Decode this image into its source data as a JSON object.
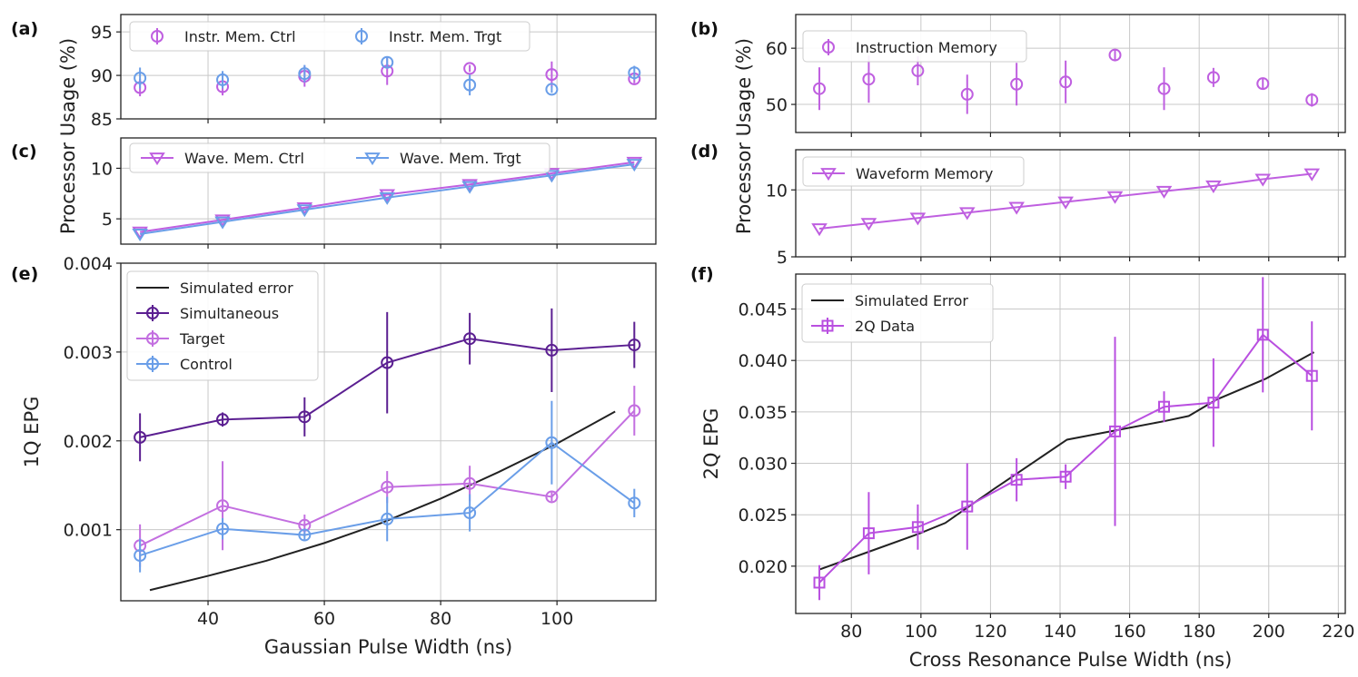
{
  "figure_ylabels": {
    "processor_usage": "Processor Usage (%)"
  },
  "chart_data": [
    {
      "id": "a",
      "panel_label": "(a)",
      "type": "scatter",
      "ylim": [
        85,
        97
      ],
      "xlim": [
        25,
        117
      ],
      "y_ticks": [
        85,
        90,
        95
      ],
      "y_tick_labels": [
        "85",
        "90",
        "95"
      ],
      "x_ticks": [
        40,
        60,
        80,
        100
      ],
      "x_tick_labels": [
        "",
        "",
        "",
        ""
      ],
      "legend": {
        "position": "top",
        "ncol": 2
      },
      "series": [
        {
          "name": "Instr. Mem. Ctrl",
          "color": "#bf5fe0",
          "marker": "circle",
          "line": false,
          "x": [
            28.3,
            42.5,
            56.6,
            70.8,
            85,
            99.1,
            113.3
          ],
          "y": [
            88.6,
            88.7,
            89.9,
            90.5,
            90.8,
            90.1,
            89.6
          ],
          "err": [
            1.0,
            1.0,
            1.2,
            1.6,
            0.4,
            1.5,
            0.5
          ]
        },
        {
          "name": "Instr. Mem. Trgt",
          "color": "#6a9ee8",
          "marker": "circle",
          "line": false,
          "x": [
            28.3,
            42.5,
            56.6,
            70.8,
            85,
            99.1,
            113.3
          ],
          "y": [
            89.7,
            89.5,
            90.2,
            91.5,
            88.9,
            88.4,
            90.3
          ],
          "err": [
            1.2,
            1.0,
            1.0,
            0.6,
            1.2,
            0.4,
            0.8
          ]
        }
      ]
    },
    {
      "id": "b",
      "panel_label": "(b)",
      "type": "scatter",
      "ylim": [
        45,
        66
      ],
      "xlim": [
        64,
        222
      ],
      "y_ticks": [
        50,
        60
      ],
      "y_tick_labels": [
        "50",
        "60"
      ],
      "x_ticks": [
        80,
        100,
        120,
        140,
        160,
        180,
        200,
        220
      ],
      "x_tick_labels": [
        "",
        "",
        "",
        "",
        "",
        "",
        "",
        ""
      ],
      "legend": {
        "position": "top-left",
        "ncol": 1
      },
      "series": [
        {
          "name": "Instruction Memory",
          "color": "#bf5fe0",
          "marker": "circle",
          "line": false,
          "x": [
            70.8,
            85,
            99.1,
            113.3,
            127.5,
            141.6,
            155.8,
            169.9,
            184.1,
            198.3,
            212.4
          ],
          "y": [
            52.8,
            54.5,
            56,
            51.8,
            53.6,
            54,
            58.8,
            52.8,
            54.8,
            53.7,
            50.8
          ],
          "err": [
            3.8,
            4.2,
            2.6,
            3.5,
            3.8,
            3.8,
            0.9,
            3.8,
            1.7,
            1.0,
            1.2
          ]
        }
      ]
    },
    {
      "id": "c",
      "panel_label": "(c)",
      "type": "line",
      "ylim": [
        2.5,
        13
      ],
      "xlim": [
        25,
        117
      ],
      "y_ticks": [
        5,
        10
      ],
      "y_tick_labels": [
        "5",
        "10"
      ],
      "x_ticks": [
        40,
        60,
        80,
        100
      ],
      "x_tick_labels": [
        "",
        "",
        "",
        ""
      ],
      "legend": {
        "position": "top",
        "ncol": 2
      },
      "series": [
        {
          "name": "Wave. Mem. Ctrl",
          "color": "#bf5fe0",
          "marker": "triangle-down",
          "line": true,
          "x": [
            28.3,
            42.5,
            56.6,
            70.8,
            85,
            99.1,
            113.3
          ],
          "y": [
            3.7,
            4.9,
            6.1,
            7.4,
            8.4,
            9.5,
            10.6
          ]
        },
        {
          "name": "Wave. Mem. Trgt",
          "color": "#6a9ee8",
          "marker": "triangle-down",
          "line": true,
          "x": [
            28.3,
            42.5,
            56.6,
            70.8,
            85,
            99.1,
            113.3
          ],
          "y": [
            3.5,
            4.7,
            5.9,
            7.1,
            8.2,
            9.3,
            10.4
          ]
        }
      ]
    },
    {
      "id": "d",
      "panel_label": "(d)",
      "type": "line",
      "ylim": [
        5,
        13
      ],
      "xlim": [
        64,
        222
      ],
      "y_ticks": [
        5,
        10
      ],
      "y_tick_labels": [
        "5",
        "10"
      ],
      "x_ticks": [
        80,
        100,
        120,
        140,
        160,
        180,
        200,
        220
      ],
      "x_tick_labels": [
        "",
        "",
        "",
        "",
        "",
        "",
        "",
        ""
      ],
      "legend": {
        "position": "top-left",
        "ncol": 1
      },
      "series": [
        {
          "name": "Waveform Memory",
          "color": "#bf5fe0",
          "marker": "triangle-down",
          "line": true,
          "x": [
            70.8,
            85,
            99.1,
            113.3,
            127.5,
            141.6,
            155.8,
            169.9,
            184.1,
            198.3,
            212.4
          ],
          "y": [
            7.1,
            7.5,
            7.9,
            8.3,
            8.7,
            9.1,
            9.5,
            9.9,
            10.3,
            10.8,
            11.2
          ]
        }
      ]
    },
    {
      "id": "e",
      "panel_label": "(e)",
      "type": "line",
      "ylim": [
        0.0002,
        0.004
      ],
      "xlim": [
        25,
        117
      ],
      "y_ticks": [
        0.001,
        0.002,
        0.003,
        0.004
      ],
      "y_tick_labels": [
        "0.001",
        "0.002",
        "0.003",
        "0.004"
      ],
      "x_ticks": [
        40,
        60,
        80,
        100
      ],
      "x_tick_labels": [
        "40",
        "60",
        "80",
        "100"
      ],
      "xlabel": "Gaussian Pulse Width (ns)",
      "ylabel": "1Q EPG",
      "legend": {
        "position": "top-left",
        "ncol": 1
      },
      "series": [
        {
          "name": "Simulated error",
          "color": "#222222",
          "marker": "none",
          "line": true,
          "x": [
            30,
            40,
            50,
            60,
            70,
            80,
            90,
            100,
            110
          ],
          "y": [
            0.00032,
            0.00048,
            0.00065,
            0.00085,
            0.00108,
            0.00135,
            0.00165,
            0.00197,
            0.00233
          ]
        },
        {
          "name": "Simultaneous",
          "color": "#5b1f91",
          "marker": "circle",
          "line": true,
          "x": [
            28.3,
            42.5,
            56.6,
            70.8,
            85,
            99.1,
            113.3
          ],
          "y": [
            0.00204,
            0.00224,
            0.00227,
            0.00288,
            0.00315,
            0.00302,
            0.00308
          ],
          "err": [
            0.00027,
            8e-05,
            0.00022,
            0.00057,
            0.00029,
            0.00047,
            0.00026
          ]
        },
        {
          "name": "Target",
          "color": "#c36fe0",
          "marker": "circle",
          "line": true,
          "x": [
            28.3,
            42.5,
            56.6,
            70.8,
            85,
            99.1,
            113.3
          ],
          "y": [
            0.00082,
            0.00127,
            0.00105,
            0.00148,
            0.00152,
            0.00137,
            0.00234
          ],
          "err": [
            0.00024,
            0.0005,
            0.00012,
            0.00018,
            0.0002,
            5e-05,
            0.00028
          ]
        },
        {
          "name": "Control",
          "color": "#6a9ee8",
          "marker": "circle",
          "line": true,
          "x": [
            28.3,
            42.5,
            56.6,
            70.8,
            85,
            99.1,
            113.3
          ],
          "y": [
            0.00071,
            0.00101,
            0.00094,
            0.00112,
            0.00119,
            0.00198,
            0.0013
          ],
          "err": [
            0.00019,
            0.00012,
            5e-05,
            0.00025,
            0.00021,
            0.00047,
            0.00016
          ]
        }
      ]
    },
    {
      "id": "f",
      "panel_label": "(f)",
      "type": "line",
      "ylim": [
        0.0154,
        0.0484
      ],
      "xlim": [
        64,
        222
      ],
      "y_ticks": [
        0.02,
        0.025,
        0.03,
        0.035,
        0.04,
        0.045
      ],
      "y_tick_labels": [
        "0.020",
        "0.025",
        "0.030",
        "0.035",
        "0.040",
        "0.045"
      ],
      "x_ticks": [
        80,
        100,
        120,
        140,
        160,
        180,
        200,
        220
      ],
      "x_tick_labels": [
        "80",
        "100",
        "120",
        "140",
        "160",
        "180",
        "200",
        "220"
      ],
      "xlabel": "Cross Resonance Pulse Width (ns)",
      "ylabel": "2Q EPG",
      "legend": {
        "position": "top-left",
        "ncol": 1
      },
      "series": [
        {
          "name": "Simulated Error",
          "color": "#222222",
          "marker": "none",
          "line": true,
          "x": [
            71,
            85,
            99,
            107,
            121,
            142,
            156,
            170,
            177,
            185,
            199,
            213
          ],
          "y": [
            0.0197,
            0.0214,
            0.0231,
            0.0242,
            0.0275,
            0.0323,
            0.0332,
            0.0341,
            0.0346,
            0.0362,
            0.0382,
            0.0408
          ]
        },
        {
          "name": "2Q Data",
          "color": "#b94fe0",
          "marker": "square",
          "line": true,
          "x": [
            70.8,
            85,
            99.1,
            113.3,
            127.5,
            141.6,
            155.8,
            169.9,
            184.1,
            198.3,
            212.4
          ],
          "y": [
            0.0184,
            0.0232,
            0.0238,
            0.0258,
            0.0284,
            0.0287,
            0.0331,
            0.0355,
            0.0359,
            0.0425,
            0.0385
          ],
          "err": [
            0.0017,
            0.004,
            0.0022,
            0.0042,
            0.0021,
            0.0012,
            0.0092,
            0.0015,
            0.0043,
            0.0056,
            0.0053
          ]
        }
      ]
    }
  ]
}
